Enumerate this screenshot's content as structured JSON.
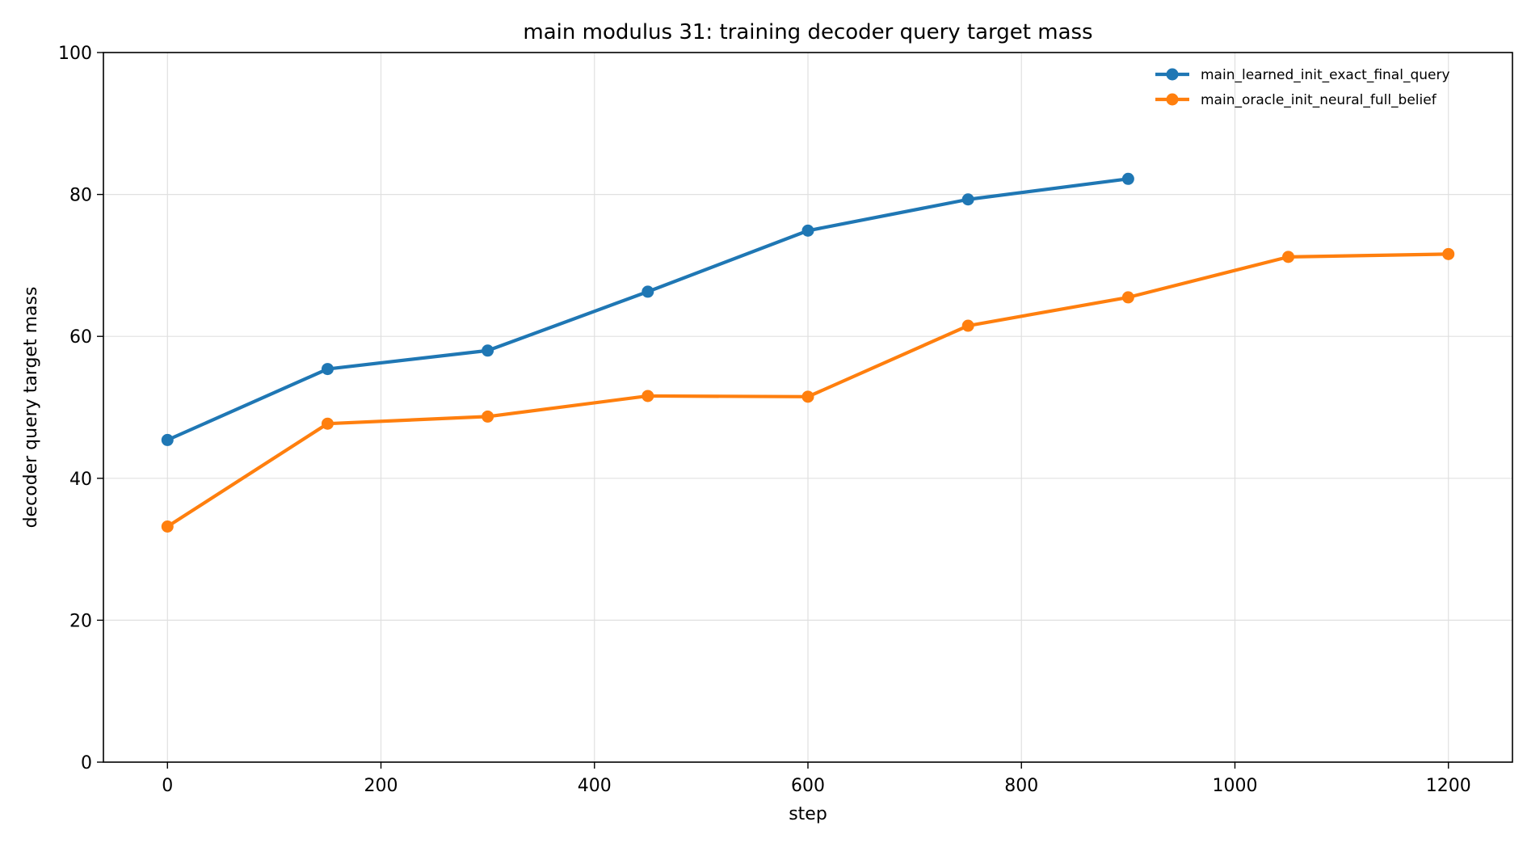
{
  "chart_data": {
    "type": "line",
    "title": "main modulus 31: training decoder query target mass",
    "xlabel": "step",
    "ylabel": "decoder query target mass",
    "xlim": [
      -60,
      1260
    ],
    "ylim": [
      0,
      100
    ],
    "x_ticks": [
      0,
      200,
      400,
      600,
      800,
      1000,
      1200
    ],
    "y_ticks": [
      0,
      20,
      40,
      60,
      80,
      100
    ],
    "grid": true,
    "legend_position": "top-right",
    "series": [
      {
        "name": "main_learned_init_exact_final_query",
        "color": "#1f77b4",
        "x": [
          0,
          150,
          300,
          450,
          600,
          750,
          900
        ],
        "y": [
          45.4,
          55.4,
          58.0,
          66.3,
          74.9,
          79.3,
          82.2
        ]
      },
      {
        "name": "main_oracle_init_neural_full_belief",
        "color": "#ff7f0e",
        "x": [
          0,
          150,
          300,
          450,
          600,
          750,
          900,
          1050,
          1200
        ],
        "y": [
          33.2,
          47.7,
          48.7,
          51.6,
          51.5,
          61.5,
          65.5,
          71.2,
          71.6
        ]
      }
    ]
  }
}
